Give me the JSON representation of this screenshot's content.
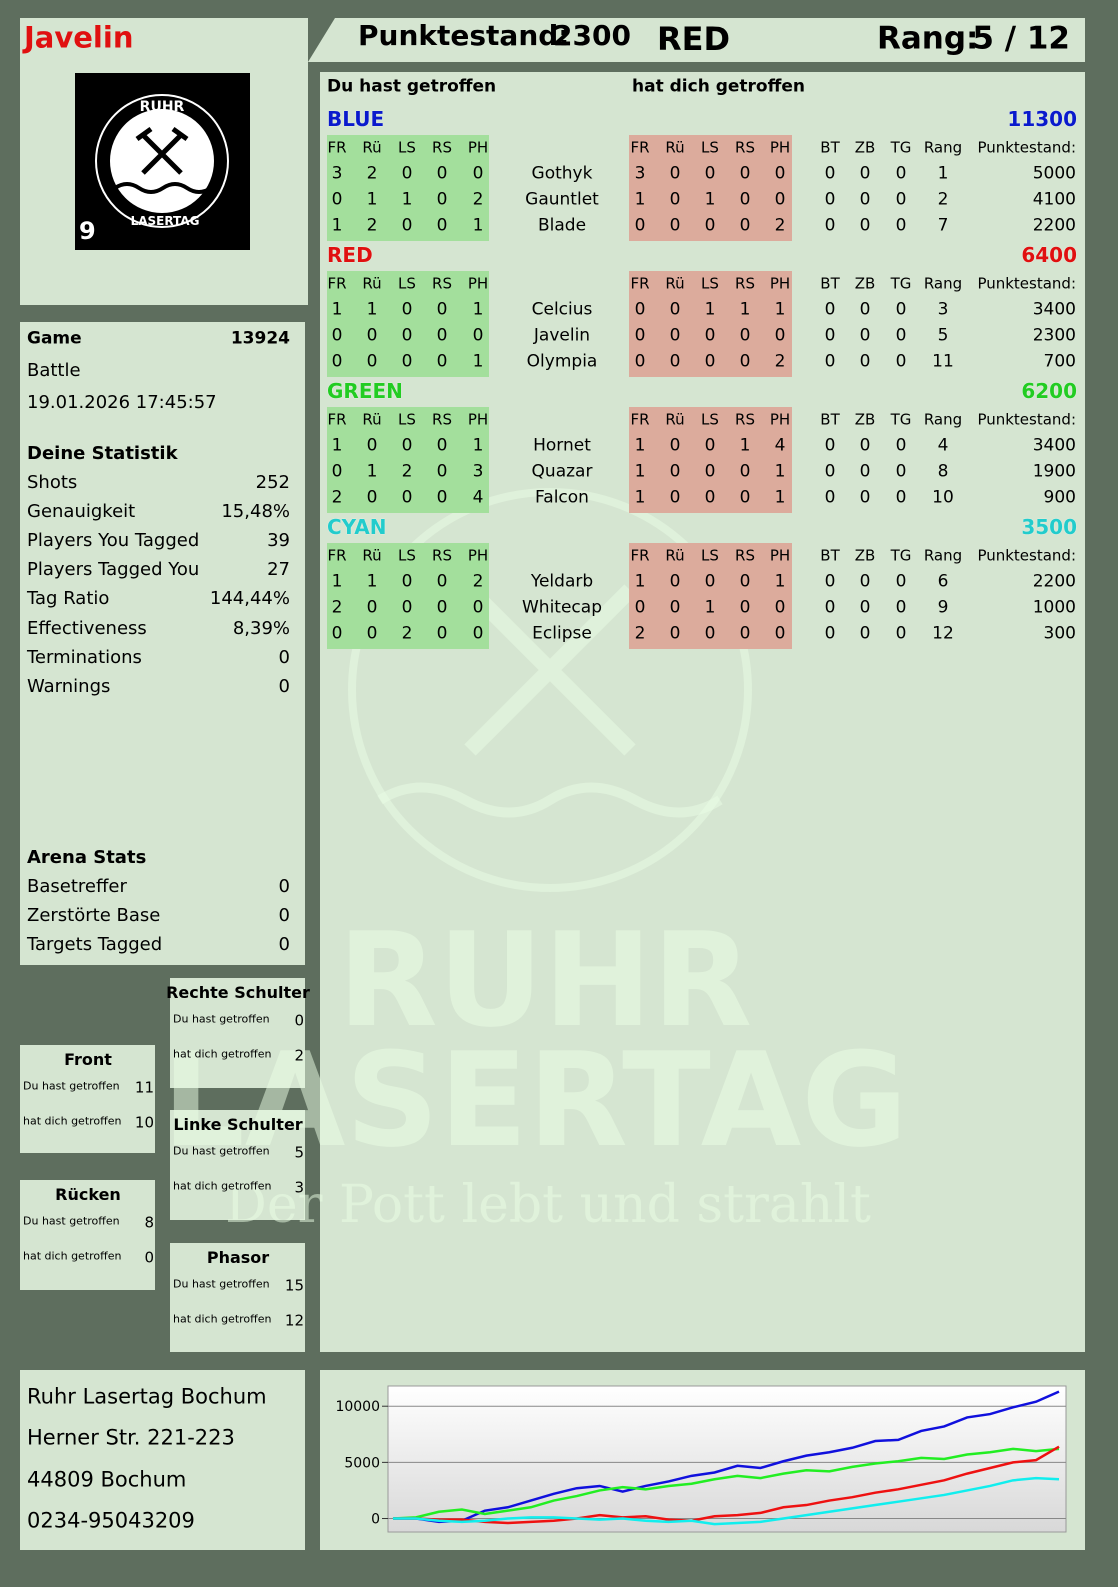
{
  "header": {
    "player": "Javelin",
    "score_label": "Punktestand:",
    "score": 2300,
    "team": "RED",
    "rank_label": "Rang:",
    "rank": "5 / 12"
  },
  "logo": {
    "top": "RUHR",
    "bottom": "LASERTAG",
    "badge": "9"
  },
  "game": {
    "label": "Game",
    "number": 13924,
    "mode": "Battle",
    "datetime": "19.01.2026 17:45:57"
  },
  "stats": {
    "title": "Deine Statistik",
    "rows": [
      [
        "Shots",
        252
      ],
      [
        "Genauigkeit",
        "15,48%"
      ],
      [
        "Players You Tagged",
        39
      ],
      [
        "Players Tagged You",
        27
      ],
      [
        "Tag Ratio",
        "144,44%"
      ],
      [
        "Effectiveness",
        "8,39%"
      ],
      [
        "Terminations",
        0
      ],
      [
        "Warnings",
        0
      ]
    ]
  },
  "arena": {
    "title": "Arena Stats",
    "rows": [
      [
        "Basetreffer",
        0
      ],
      [
        "Zerstörte Base",
        0
      ],
      [
        "Targets Tagged",
        0
      ]
    ]
  },
  "zones": [
    {
      "title": "Rechte Schulter",
      "rows": [
        [
          "Du hast getroffen",
          0
        ],
        [
          "hat dich getroffen",
          2
        ]
      ]
    },
    {
      "title": "Front",
      "rows": [
        [
          "Du hast getroffen",
          11
        ],
        [
          "hat dich getroffen",
          10
        ]
      ]
    },
    {
      "title": "Linke Schulter",
      "rows": [
        [
          "Du hast getroffen",
          5
        ],
        [
          "hat dich getroffen",
          3
        ]
      ]
    },
    {
      "title": "Rücken",
      "rows": [
        [
          "Du hast getroffen",
          8
        ],
        [
          "hat dich getroffen",
          0
        ]
      ]
    },
    {
      "title": "Phasor",
      "rows": [
        [
          "Du hast getroffen",
          15
        ],
        [
          "hat dich getroffen",
          12
        ]
      ]
    }
  ],
  "address": [
    "Ruhr Lasertag Bochum",
    "Herner Str. 221-223",
    "44809 Bochum",
    "0234-95043209"
  ],
  "watermark": {
    "line1": "RUHR",
    "line2": "LASERTAG",
    "slogan": "Der Pott lebt und strahlt"
  },
  "table": {
    "hit_title": "Du hast getroffen",
    "hitby_title": "hat dich getroffen",
    "hit_columns": [
      "FR",
      "Rü",
      "LS",
      "RS",
      "PH"
    ],
    "stat_columns": [
      "BT",
      "ZB",
      "TG",
      "Rang",
      "Punktestand:"
    ],
    "teams": [
      {
        "name": "BLUE",
        "color": "#0a1acc",
        "total": 11300,
        "players": [
          {
            "name": "Gothyk",
            "hit": [
              3,
              2,
              0,
              0,
              0
            ],
            "hitby": [
              3,
              0,
              0,
              0,
              0
            ],
            "stats": [
              0,
              0,
              0,
              1,
              5000
            ]
          },
          {
            "name": "Gauntlet",
            "hit": [
              0,
              1,
              1,
              0,
              2
            ],
            "hitby": [
              1,
              0,
              1,
              0,
              0
            ],
            "stats": [
              0,
              0,
              0,
              2,
              4100
            ]
          },
          {
            "name": "Blade",
            "hit": [
              1,
              2,
              0,
              0,
              1
            ],
            "hitby": [
              0,
              0,
              0,
              0,
              2
            ],
            "stats": [
              0,
              0,
              0,
              7,
              2200
            ]
          }
        ]
      },
      {
        "name": "RED",
        "color": "#e01010",
        "total": 6400,
        "players": [
          {
            "name": "Celcius",
            "hit": [
              1,
              1,
              0,
              0,
              1
            ],
            "hitby": [
              0,
              0,
              1,
              1,
              1
            ],
            "stats": [
              0,
              0,
              0,
              3,
              3400
            ]
          },
          {
            "name": "Javelin",
            "hit": [
              0,
              0,
              0,
              0,
              0
            ],
            "hitby": [
              0,
              0,
              0,
              0,
              0
            ],
            "stats": [
              0,
              0,
              0,
              5,
              2300
            ]
          },
          {
            "name": "Olympia",
            "hit": [
              0,
              0,
              0,
              0,
              1
            ],
            "hitby": [
              0,
              0,
              0,
              0,
              2
            ],
            "stats": [
              0,
              0,
              0,
              11,
              700
            ]
          }
        ]
      },
      {
        "name": "GREEN",
        "color": "#22cc22",
        "total": 6200,
        "players": [
          {
            "name": "Hornet",
            "hit": [
              1,
              0,
              0,
              0,
              1
            ],
            "hitby": [
              1,
              0,
              0,
              1,
              4
            ],
            "stats": [
              0,
              0,
              0,
              4,
              3400
            ]
          },
          {
            "name": "Quazar",
            "hit": [
              0,
              1,
              2,
              0,
              3
            ],
            "hitby": [
              1,
              0,
              0,
              0,
              1
            ],
            "stats": [
              0,
              0,
              0,
              8,
              1900
            ]
          },
          {
            "name": "Falcon",
            "hit": [
              2,
              0,
              0,
              0,
              4
            ],
            "hitby": [
              1,
              0,
              0,
              0,
              1
            ],
            "stats": [
              0,
              0,
              0,
              10,
              900
            ]
          }
        ]
      },
      {
        "name": "CYAN",
        "color": "#22cccc",
        "total": 3500,
        "players": [
          {
            "name": "Yeldarb",
            "hit": [
              1,
              1,
              0,
              0,
              2
            ],
            "hitby": [
              1,
              0,
              0,
              0,
              1
            ],
            "stats": [
              0,
              0,
              0,
              6,
              2200
            ]
          },
          {
            "name": "Whitecap",
            "hit": [
              2,
              0,
              0,
              0,
              0
            ],
            "hitby": [
              0,
              0,
              1,
              0,
              0
            ],
            "stats": [
              0,
              0,
              0,
              9,
              1000
            ]
          },
          {
            "name": "Eclipse",
            "hit": [
              0,
              0,
              2,
              0,
              0
            ],
            "hitby": [
              2,
              0,
              0,
              0,
              0
            ],
            "stats": [
              0,
              0,
              0,
              12,
              300
            ]
          }
        ]
      }
    ]
  },
  "chart_data": {
    "type": "line",
    "ylim": [
      -1200,
      11800
    ],
    "yticks": [
      0,
      5000,
      10000
    ],
    "grid": true,
    "series": [
      {
        "color": "#1010dd",
        "values": [
          0,
          0,
          -300,
          -200,
          700,
          1000,
          1600,
          2200,
          2700,
          2900,
          2400,
          2900,
          3300,
          3800,
          4100,
          4700,
          4500,
          5100,
          5600,
          5900,
          6300,
          6900,
          7000,
          7800,
          8200,
          9000,
          9300,
          9900,
          10400,
          11300
        ]
      },
      {
        "color": "#22ee22",
        "values": [
          0,
          100,
          600,
          800,
          400,
          700,
          1000,
          1600,
          2000,
          2500,
          2800,
          2600,
          2900,
          3100,
          3500,
          3800,
          3600,
          4000,
          4300,
          4200,
          4600,
          4900,
          5100,
          5400,
          5300,
          5700,
          5900,
          6200,
          6000,
          6200
        ]
      },
      {
        "color": "#ee1111",
        "values": [
          0,
          0,
          -100,
          -100,
          -300,
          -400,
          -300,
          -200,
          0,
          300,
          100,
          200,
          -100,
          -200,
          200,
          300,
          500,
          1000,
          1200,
          1600,
          1900,
          2300,
          2600,
          3000,
          3400,
          4000,
          4500,
          5000,
          5200,
          6400
        ]
      },
      {
        "color": "#11eeee",
        "values": [
          0,
          0,
          -200,
          -300,
          -200,
          0,
          100,
          100,
          0,
          -100,
          0,
          -200,
          -300,
          -200,
          -500,
          -400,
          -300,
          0,
          300,
          600,
          900,
          1200,
          1500,
          1800,
          2100,
          2500,
          2900,
          3400,
          3600,
          3500
        ]
      }
    ]
  }
}
